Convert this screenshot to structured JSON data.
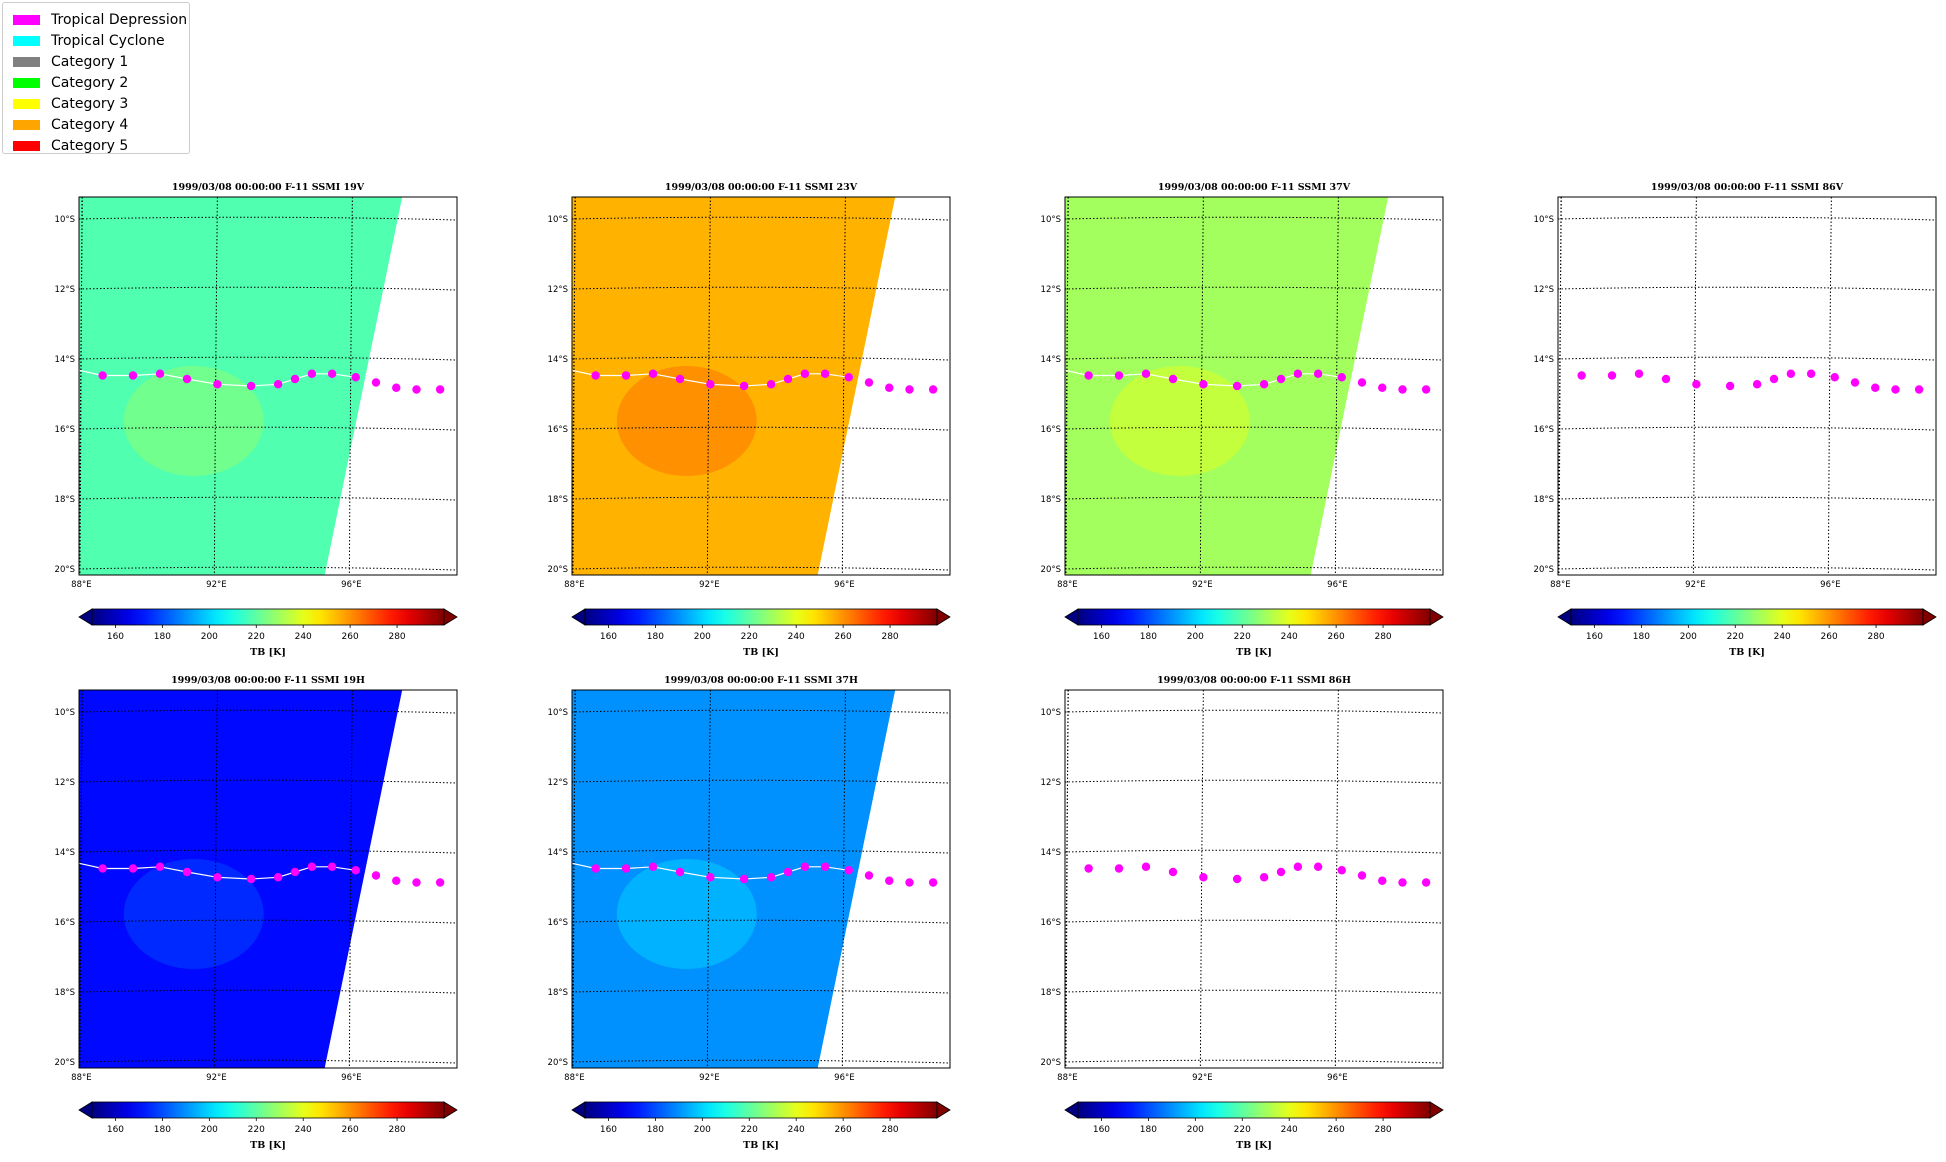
{
  "legend": {
    "items": [
      {
        "label": "Tropical Depression",
        "color": "#ff00ff"
      },
      {
        "label": "Tropical Cyclone",
        "color": "#00ffff"
      },
      {
        "label": "Category 1",
        "color": "#808080"
      },
      {
        "label": "Category 2",
        "color": "#00ff00"
      },
      {
        "label": "Category 3",
        "color": "#ffff00"
      },
      {
        "label": "Category 4",
        "color": "#ffa500"
      },
      {
        "label": "Category 5",
        "color": "#ff0000"
      }
    ]
  },
  "chart_data": {
    "type": "heatmap",
    "panels": [
      {
        "title": "1999/03/08 00:00:00  F-11 SSMI 19V",
        "has_swath": true,
        "colorscale_value_k": 218,
        "show_track_line": true
      },
      {
        "title": "1999/03/08 00:00:00  F-11 SSMI 23V",
        "has_swath": true,
        "colorscale_value_k": 255,
        "show_track_line": true
      },
      {
        "title": "1999/03/08 00:00:00  F-11 SSMI 37V",
        "has_swath": true,
        "colorscale_value_k": 230,
        "show_track_line": true
      },
      {
        "title": "1999/03/08 00:00:00  F-11 SSMI 86V",
        "has_swath": false,
        "colorscale_value_k": null,
        "show_track_line": false
      },
      {
        "title": "1999/03/08 00:00:00  F-11 SSMI 19H",
        "has_swath": true,
        "colorscale_value_k": 170,
        "show_track_line": true
      },
      {
        "title": "1999/03/08 00:00:00  F-11 SSMI 37H",
        "has_swath": true,
        "colorscale_value_k": 190,
        "show_track_line": true
      },
      {
        "title": "1999/03/08 00:00:00  F-11 SSMI 86H",
        "has_swath": false,
        "colorscale_value_k": null,
        "show_track_line": false
      }
    ],
    "lon_ticks": [
      {
        "value": 88,
        "label": "88°E"
      },
      {
        "value": 92,
        "label": "92°E"
      },
      {
        "value": 96,
        "label": "96°E"
      }
    ],
    "lat_ticks": [
      {
        "value": -10,
        "label": "10°S"
      },
      {
        "value": -12,
        "label": "12°S"
      },
      {
        "value": -14,
        "label": "14°S"
      },
      {
        "value": -16,
        "label": "16°S"
      },
      {
        "value": -18,
        "label": "18°S"
      },
      {
        "value": -20,
        "label": "20°S"
      }
    ],
    "xlim": [
      87.9,
      99.1
    ],
    "ylim": [
      -20.2,
      -9.4
    ],
    "colorbar": {
      "label": "TB [K]",
      "ticks": [
        160,
        180,
        200,
        220,
        240,
        260,
        280
      ],
      "range": [
        150,
        300
      ],
      "colormap": "jet",
      "extend": "both"
    },
    "track": {
      "category": "Tropical Depression",
      "points": [
        {
          "lon": 88.6,
          "lat": -14.5
        },
        {
          "lon": 89.5,
          "lat": -14.5
        },
        {
          "lon": 90.3,
          "lat": -14.45
        },
        {
          "lon": 91.1,
          "lat": -14.6
        },
        {
          "lon": 92.0,
          "lat": -14.75
        },
        {
          "lon": 93.0,
          "lat": -14.8
        },
        {
          "lon": 93.8,
          "lat": -14.75
        },
        {
          "lon": 94.3,
          "lat": -14.6
        },
        {
          "lon": 94.8,
          "lat": -14.45
        },
        {
          "lon": 95.4,
          "lat": -14.45
        },
        {
          "lon": 96.1,
          "lat": -14.55
        },
        {
          "lon": 96.7,
          "lat": -14.7
        },
        {
          "lon": 97.3,
          "lat": -14.85
        },
        {
          "lon": 97.9,
          "lat": -14.9
        },
        {
          "lon": 98.6,
          "lat": -14.9
        }
      ]
    }
  }
}
